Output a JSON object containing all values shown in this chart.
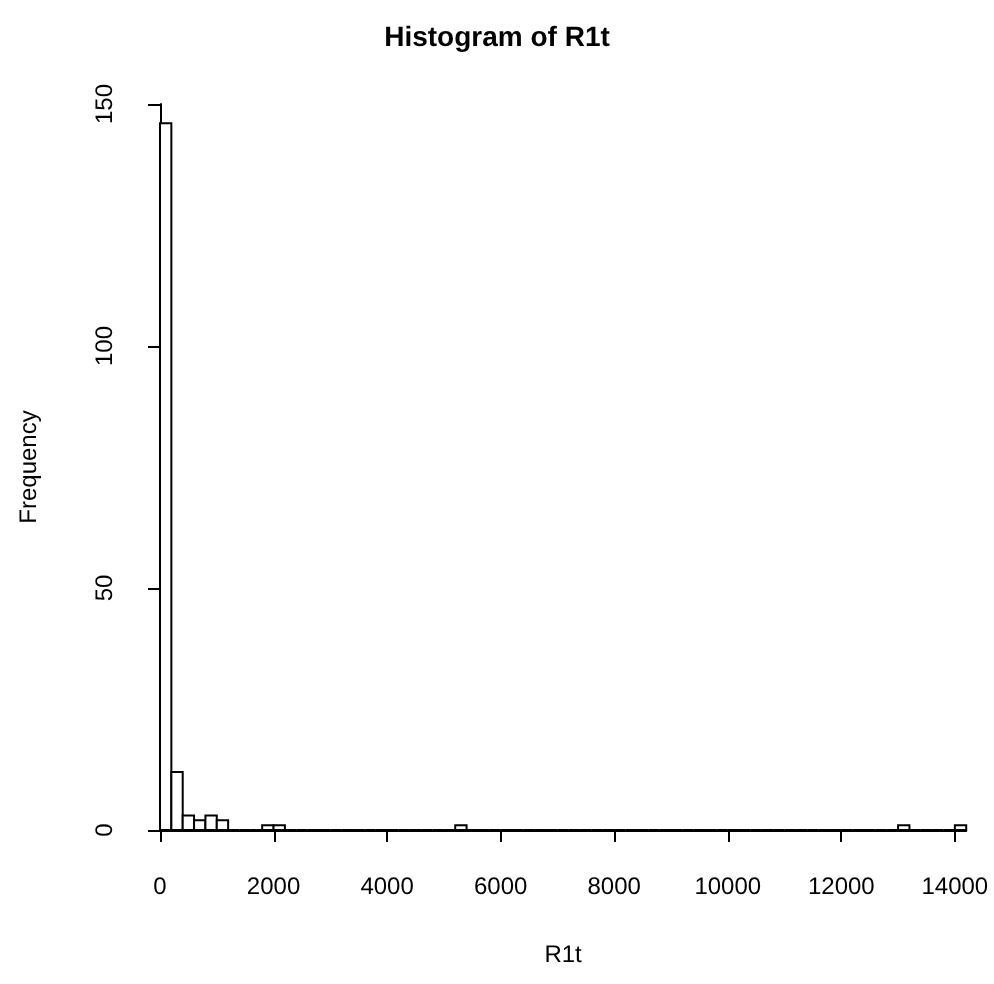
{
  "chart_data": {
    "type": "histogram",
    "title": "Histogram of R1t",
    "xlabel": "R1t",
    "ylabel": "Frequency",
    "bins": [
      0,
      200,
      400,
      600,
      800,
      1000,
      1200,
      1400,
      1600,
      1800,
      2000,
      2200,
      2400,
      2600,
      2800,
      3000,
      3200,
      3400,
      3600,
      3800,
      4000,
      4200,
      4400,
      4600,
      4800,
      5000,
      5200,
      5400,
      5600,
      5800,
      6000,
      6200,
      6400,
      6600,
      6800,
      7000,
      7200,
      7400,
      7600,
      7800,
      8000,
      8200,
      8400,
      8600,
      8800,
      9000,
      9200,
      9400,
      9600,
      9800,
      10000,
      10200,
      10400,
      10600,
      10800,
      11000,
      11200,
      11400,
      11600,
      11800,
      12000,
      12200,
      12400,
      12600,
      12800,
      13000,
      13200,
      13400,
      13600,
      13800,
      14000,
      14200
    ],
    "values": [
      146,
      12,
      3,
      2,
      3,
      2,
      0,
      0,
      0,
      1,
      1,
      0,
      0,
      0,
      0,
      0,
      0,
      0,
      0,
      0,
      0,
      0,
      0,
      0,
      0,
      0,
      1,
      0,
      0,
      0,
      0,
      0,
      0,
      0,
      0,
      0,
      0,
      0,
      0,
      0,
      0,
      0,
      0,
      0,
      0,
      0,
      0,
      0,
      0,
      0,
      0,
      0,
      0,
      0,
      0,
      0,
      0,
      0,
      0,
      0,
      0,
      0,
      0,
      0,
      0,
      1,
      0,
      0,
      0,
      0,
      1
    ],
    "color": "#ffffff",
    "xlim": [
      0,
      14200
    ],
    "xticks": [
      0,
      2000,
      4000,
      6000,
      8000,
      10000,
      12000,
      14000
    ],
    "ylim": [
      0,
      150
    ],
    "yticks": [
      0,
      50,
      100,
      150
    ],
    "grid": false
  }
}
